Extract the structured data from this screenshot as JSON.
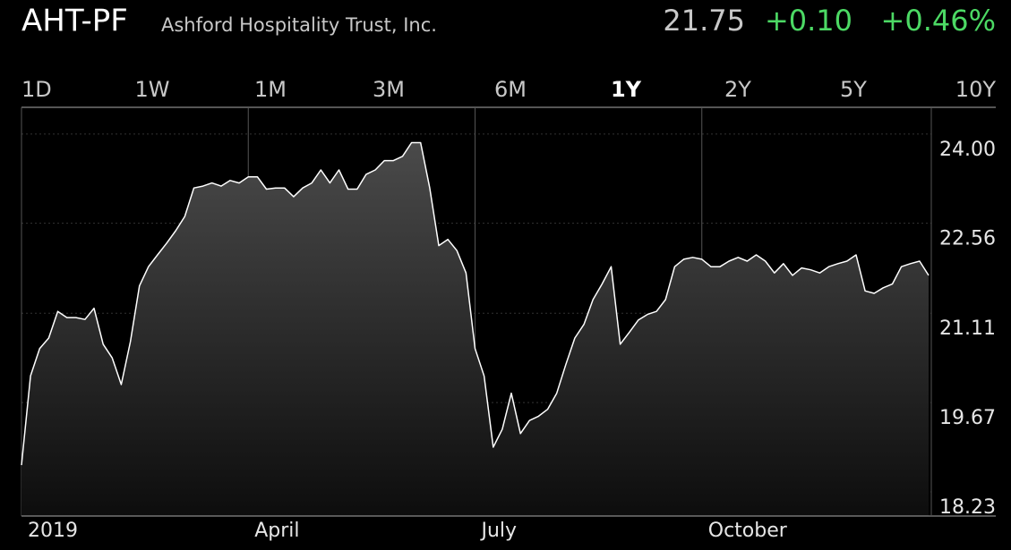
{
  "header": {
    "symbol": "AHT-PF",
    "name": "Ashford Hospitality Trust, Inc.",
    "price": "21.75",
    "change": "+0.10",
    "change_percent": "+0.46%"
  },
  "tabs": [
    "1D",
    "1W",
    "1M",
    "3M",
    "6M",
    "1Y",
    "2Y",
    "5Y",
    "10Y"
  ],
  "selected_tab": 5,
  "chart_data": {
    "type": "area",
    "color": "#ffffff",
    "values": [
      18.66,
      20.1,
      20.54,
      20.71,
      21.14,
      21.04,
      21.04,
      21.01,
      21.19,
      20.61,
      20.39,
      19.96,
      20.65,
      21.55,
      21.86,
      22.05,
      22.24,
      22.44,
      22.67,
      23.13,
      23.16,
      23.21,
      23.16,
      23.25,
      23.21,
      23.31,
      23.31,
      23.11,
      23.13,
      23.13,
      22.99,
      23.13,
      23.21,
      23.42,
      23.21,
      23.42,
      23.11,
      23.11,
      23.35,
      23.42,
      23.57,
      23.57,
      23.64,
      23.86,
      23.86,
      23.13,
      22.2,
      22.3,
      22.12,
      21.76,
      20.54,
      20.1,
      18.95,
      19.24,
      19.82,
      19.17,
      19.38,
      19.45,
      19.56,
      19.82,
      20.28,
      20.71,
      20.93,
      21.33,
      21.58,
      21.86,
      20.61,
      20.8,
      21.0,
      21.09,
      21.14,
      21.33,
      21.86,
      21.98,
      22.01,
      21.98,
      21.86,
      21.86,
      21.95,
      22.01,
      21.95,
      22.05,
      21.95,
      21.76,
      21.91,
      21.72,
      21.84,
      21.81,
      21.76,
      21.86,
      21.91,
      21.95,
      22.05,
      21.47,
      21.43,
      21.52,
      21.58,
      21.86,
      21.91,
      21.95,
      21.72
    ],
    "xlim": [
      0,
      100
    ],
    "xticks": [
      {
        "value": 0,
        "label": "2019"
      },
      {
        "value": 25,
        "label": "April"
      },
      {
        "value": 50,
        "label": "July"
      },
      {
        "value": 75,
        "label": "October"
      }
    ],
    "ylim": [
      17.84,
      24.43
    ],
    "yticks": [
      {
        "value": 24.0,
        "label": "24.00"
      },
      22.56,
      21.11,
      19.67,
      18.23
    ],
    "grid": true
  }
}
